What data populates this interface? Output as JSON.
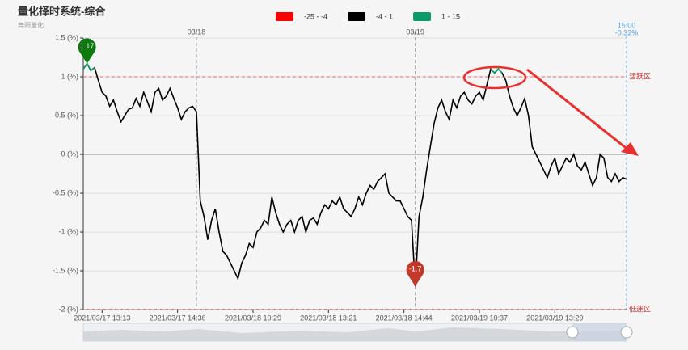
{
  "chart_data": {
    "type": "line",
    "title": "量化择时系统-综合",
    "subtitle": "舞阳量化",
    "categories": [
      null,
      null,
      null,
      null,
      null,
      "2021/03/17 13:13",
      null,
      null,
      null,
      null,
      null,
      null,
      null,
      null,
      null,
      null,
      null,
      null,
      null,
      null,
      null,
      null,
      null,
      null,
      null,
      "2021/03/17 14:36",
      null,
      null,
      null,
      null,
      null,
      null,
      null,
      null,
      null,
      null,
      null,
      null,
      null,
      null,
      null,
      null,
      null,
      null,
      null,
      "2021/03/18 10:29",
      null,
      null,
      null,
      null,
      null,
      null,
      null,
      null,
      null,
      null,
      null,
      null,
      null,
      null,
      null,
      null,
      null,
      null,
      null,
      "2021/03/18 13:21",
      null,
      null,
      null,
      null,
      null,
      null,
      null,
      null,
      null,
      null,
      null,
      null,
      null,
      null,
      null,
      null,
      null,
      null,
      null,
      "2021/03/18 14:44",
      null,
      null,
      null,
      null,
      null,
      null,
      null,
      null,
      null,
      null,
      null,
      null,
      null,
      null,
      null,
      null,
      null,
      null,
      null,
      "2021/03/19 10:37",
      null,
      null,
      null,
      null,
      null,
      null,
      null,
      null,
      null,
      null,
      null,
      null,
      null,
      null,
      null,
      null,
      null,
      null,
      null,
      "2021/03/19 13:29",
      null,
      null,
      null,
      null,
      null,
      null,
      null,
      null,
      null,
      null,
      null,
      null,
      null,
      null,
      null,
      null,
      null,
      null,
      null
    ],
    "values": [
      1.1,
      1.17,
      1.08,
      1.12,
      0.95,
      0.8,
      0.75,
      0.62,
      0.7,
      0.55,
      0.42,
      0.5,
      0.58,
      0.6,
      0.72,
      0.62,
      0.8,
      0.68,
      0.55,
      0.8,
      0.85,
      0.7,
      0.75,
      0.85,
      0.72,
      0.6,
      0.45,
      0.55,
      0.6,
      0.62,
      0.55,
      -0.6,
      -0.8,
      -1.1,
      -0.85,
      -0.7,
      -1.0,
      -1.25,
      -1.3,
      -1.4,
      -1.5,
      -1.6,
      -1.4,
      -1.3,
      -1.15,
      -1.2,
      -1.0,
      -0.95,
      -0.85,
      -0.9,
      -0.55,
      -0.75,
      -0.9,
      -1.0,
      -0.9,
      -0.85,
      -1.0,
      -0.85,
      -0.8,
      -1.0,
      -0.85,
      -0.82,
      -0.9,
      -0.75,
      -0.65,
      -0.7,
      -0.6,
      -0.65,
      -0.55,
      -0.7,
      -0.75,
      -0.8,
      -0.7,
      -0.55,
      -0.65,
      -0.5,
      -0.4,
      -0.45,
      -0.35,
      -0.3,
      -0.25,
      -0.5,
      -0.55,
      -0.6,
      -0.6,
      -0.7,
      -0.8,
      -0.85,
      -1.7,
      -0.8,
      -0.55,
      -0.2,
      0.1,
      0.4,
      0.6,
      0.7,
      0.55,
      0.45,
      0.7,
      0.6,
      0.75,
      0.8,
      0.7,
      0.65,
      0.75,
      0.8,
      0.7,
      0.9,
      1.1,
      1.05,
      1.1,
      1.05,
      0.95,
      0.75,
      0.6,
      0.5,
      0.6,
      0.72,
      0.5,
      0.1,
      0.0,
      -0.1,
      -0.2,
      -0.3,
      -0.15,
      -0.05,
      -0.25,
      -0.15,
      -0.05,
      -0.1,
      0.0,
      -0.15,
      -0.2,
      -0.1,
      -0.25,
      -0.4,
      -0.3,
      0.0,
      -0.05,
      -0.3,
      -0.35,
      -0.25,
      -0.35,
      -0.3,
      -0.32
    ],
    "pieces": [
      {
        "label": "-25 - -4",
        "min": -25,
        "max": -4,
        "color": "#ff0000"
      },
      {
        "label": "-4 - 1",
        "min": -4,
        "max": 1,
        "color": "#000000"
      },
      {
        "label": "1 - 15",
        "min": 1,
        "max": 15,
        "color": "#0a9a6a"
      }
    ],
    "ylim": [
      -2,
      1.5
    ],
    "yticks": [
      {
        "value": -2,
        "label": "-2 (%)"
      },
      {
        "value": -1.5,
        "label": "-1.5 (%)"
      },
      {
        "value": -1,
        "label": "-1 (%)"
      },
      {
        "value": -0.5,
        "label": "-0.5 (%)"
      },
      {
        "value": 0,
        "label": "0 (%)"
      },
      {
        "value": 0.5,
        "label": "0.5 (%)"
      },
      {
        "value": 1,
        "label": "1 (%)"
      },
      {
        "value": 1.5,
        "label": "1.5 (%)"
      }
    ],
    "grid": true,
    "mark_lines": [
      {
        "value": 1,
        "label": "活跃区"
      },
      {
        "value": -2,
        "label": "低迷区"
      }
    ],
    "day_dividers": [
      {
        "index": 30,
        "label": "03/18"
      },
      {
        "index": 88,
        "label": "03/19"
      }
    ],
    "last_time": "15:00",
    "last_value_label": "-0.32%"
  }
}
